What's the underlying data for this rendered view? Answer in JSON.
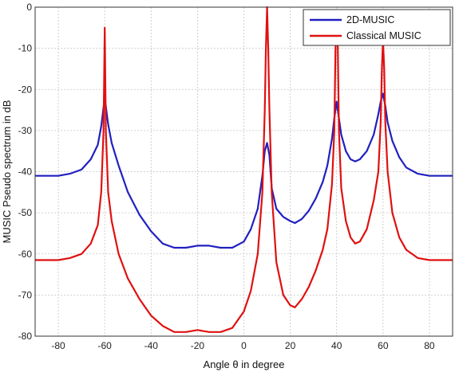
{
  "chart_data": {
    "type": "line",
    "title": "",
    "xlabel": "Angle θ in degree",
    "ylabel": "MUSIC Pseudo  spectrum  in dB",
    "xlim": [
      -90,
      90
    ],
    "ylim": [
      -80,
      0
    ],
    "xticks": [
      -80,
      -60,
      -40,
      -20,
      0,
      20,
      40,
      60,
      80
    ],
    "yticks": [
      0,
      -10,
      -20,
      -30,
      -40,
      -50,
      -60,
      -70,
      -80
    ],
    "grid": true,
    "legend_position": "top-right",
    "series": [
      {
        "name": "2D-MUSIC",
        "color": "#2020c0",
        "x": [
          -90,
          -80,
          -75,
          -70,
          -66,
          -63,
          -61.5,
          -60,
          -58.5,
          -57,
          -54,
          -50,
          -45,
          -40,
          -35,
          -30,
          -25,
          -20,
          -15,
          -10,
          -5,
          0,
          3,
          6,
          8,
          9,
          10,
          11,
          12,
          14,
          17,
          20,
          22,
          25,
          28,
          31,
          34,
          36,
          38,
          39,
          40,
          41,
          42,
          44,
          46,
          48,
          50,
          53,
          56,
          58,
          59,
          60,
          61,
          62,
          64,
          67,
          70,
          75,
          80,
          90
        ],
        "y": [
          -41,
          -41,
          -40.5,
          -39.5,
          -37,
          -33.5,
          -29,
          -22,
          -28.5,
          -33,
          -38.5,
          -45,
          -50.5,
          -54.5,
          -57.5,
          -58.5,
          -58.5,
          -58,
          -58,
          -58.5,
          -58.5,
          -57,
          -54,
          -49,
          -41,
          -35,
          -33,
          -36,
          -44,
          -49,
          -51,
          -52,
          -52.5,
          -51.5,
          -49.5,
          -46.5,
          -42.5,
          -38.5,
          -32,
          -27,
          -23,
          -27,
          -31,
          -35,
          -37,
          -37.5,
          -37,
          -35,
          -31,
          -26,
          -23,
          -21,
          -24,
          -28,
          -32.5,
          -36.5,
          -39,
          -40.5,
          -41,
          -41
        ]
      },
      {
        "name": "Classical MUSIC",
        "color": "#e01010",
        "x": [
          -90,
          -80,
          -75,
          -70,
          -66,
          -63,
          -61.5,
          -60.5,
          -60,
          -59.5,
          -58.5,
          -57,
          -54,
          -50,
          -45,
          -40,
          -35,
          -30,
          -25,
          -20,
          -15,
          -10,
          -5,
          0,
          3,
          6,
          8,
          9,
          9.5,
          10,
          10.5,
          11,
          12,
          14,
          17,
          20,
          22,
          25,
          28,
          31,
          34,
          36,
          38,
          39,
          39.5,
          40,
          40.5,
          41,
          42,
          44,
          46,
          48,
          50,
          53,
          56,
          58,
          59,
          59.5,
          60,
          60.5,
          61,
          62,
          64,
          67,
          70,
          75,
          80,
          90
        ],
        "y": [
          -61.5,
          -61.5,
          -61,
          -60,
          -57.5,
          -53,
          -45,
          -30,
          -5,
          -30,
          -45,
          -52,
          -60,
          -66,
          -71,
          -75,
          -77.5,
          -79,
          -79,
          -78.5,
          -79,
          -79,
          -78,
          -74,
          -69,
          -60,
          -45,
          -25,
          -10,
          0,
          -10,
          -25,
          -45,
          -62,
          -70,
          -72.5,
          -73,
          -71,
          -68,
          -64,
          -59,
          -54,
          -43,
          -30,
          -10,
          -3,
          -10,
          -30,
          -44,
          -52,
          -56,
          -57.5,
          -57,
          -54,
          -47,
          -40,
          -28,
          -15,
          -8,
          -15,
          -28,
          -40,
          -50,
          -56,
          -59,
          -61,
          -61.5,
          -61.5
        ]
      }
    ]
  }
}
